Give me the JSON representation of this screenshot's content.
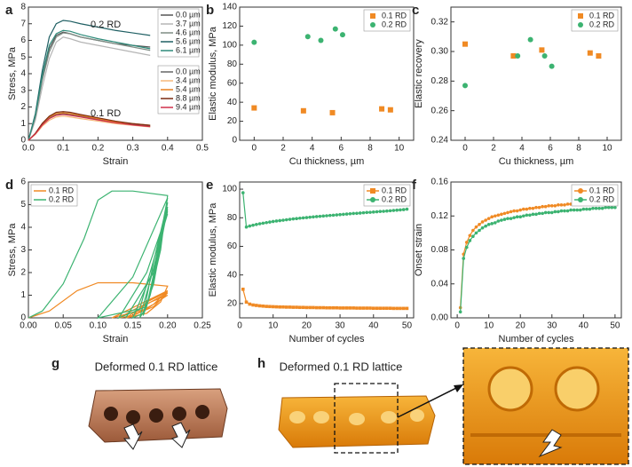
{
  "chart_data": [
    {
      "type": "line",
      "label": "a",
      "xlabel": "Strain",
      "ylabel": "Stress, MPa",
      "xlim": [
        0,
        0.5
      ],
      "xticks": [
        {
          "value": 0,
          "label": "0.0"
        },
        0.1,
        0.2,
        0.3,
        0.4,
        0.5
      ],
      "ylim": [
        0,
        8
      ],
      "yticks": [
        0,
        1,
        2,
        3,
        4,
        5,
        6,
        7,
        8
      ],
      "legend": "right",
      "annotations": [
        "0.2 RD",
        "0.1 RD"
      ],
      "series": [
        {
          "name": "0.0 µm",
          "color": "#555555",
          "x": [
            0,
            0.02,
            0.04,
            0.06,
            0.08,
            0.1,
            0.12,
            0.15,
            0.2,
            0.25,
            0.3,
            0.35
          ],
          "values": [
            0,
            1.5,
            3.8,
            5.5,
            6.3,
            6.5,
            6.4,
            6.2,
            6.0,
            5.8,
            5.7,
            5.6
          ]
        },
        {
          "name": "3.7 µm",
          "color": "#b5b5b5",
          "x": [
            0,
            0.02,
            0.04,
            0.06,
            0.08,
            0.1,
            0.12,
            0.15,
            0.2,
            0.25,
            0.3,
            0.35
          ],
          "values": [
            0,
            1.2,
            3.2,
            4.9,
            5.9,
            6.2,
            6.1,
            5.9,
            5.7,
            5.5,
            5.3,
            5.1
          ]
        },
        {
          "name": "4.6 µm",
          "color": "#7f8c84",
          "x": [
            0,
            0.02,
            0.04,
            0.06,
            0.08,
            0.1,
            0.12,
            0.15,
            0.2,
            0.25,
            0.3,
            0.35
          ],
          "values": [
            0,
            1.4,
            3.6,
            5.3,
            6.2,
            6.45,
            6.4,
            6.2,
            6.0,
            5.8,
            5.6,
            5.4
          ]
        },
        {
          "name": "5.6 µm",
          "color": "#1f5f63",
          "x": [
            0,
            0.02,
            0.04,
            0.06,
            0.08,
            0.1,
            0.12,
            0.15,
            0.2,
            0.25,
            0.3,
            0.35
          ],
          "values": [
            0,
            1.6,
            4.2,
            6.2,
            7.0,
            7.2,
            7.15,
            7.0,
            6.8,
            6.6,
            6.45,
            6.3
          ]
        },
        {
          "name": "6.1 µm",
          "color": "#2e8b7a",
          "x": [
            0,
            0.02,
            0.04,
            0.06,
            0.08,
            0.1,
            0.12,
            0.15,
            0.2,
            0.25,
            0.3,
            0.35
          ],
          "values": [
            0,
            1.5,
            3.9,
            5.7,
            6.4,
            6.6,
            6.55,
            6.35,
            6.1,
            5.9,
            5.7,
            5.5
          ]
        },
        {
          "name": "0.0 µm",
          "color": "#666666",
          "x": [
            0,
            0.02,
            0.04,
            0.06,
            0.08,
            0.1,
            0.12,
            0.15,
            0.2,
            0.25,
            0.3,
            0.35
          ],
          "values": [
            0,
            0.4,
            0.95,
            1.35,
            1.55,
            1.6,
            1.55,
            1.45,
            1.25,
            1.1,
            0.95,
            0.85
          ]
        },
        {
          "name": "3.4 µm",
          "color": "#f5b87a",
          "x": [
            0,
            0.02,
            0.04,
            0.06,
            0.08,
            0.1,
            0.12,
            0.15,
            0.2,
            0.25,
            0.3,
            0.35
          ],
          "values": [
            0,
            0.35,
            0.85,
            1.2,
            1.4,
            1.45,
            1.4,
            1.3,
            1.15,
            1.0,
            0.9,
            0.8
          ]
        },
        {
          "name": "5.4 µm",
          "color": "#e8801e",
          "x": [
            0,
            0.02,
            0.04,
            0.06,
            0.08,
            0.1,
            0.12,
            0.15,
            0.2,
            0.25,
            0.3,
            0.35
          ],
          "values": [
            0,
            0.4,
            1.0,
            1.4,
            1.6,
            1.65,
            1.6,
            1.5,
            1.3,
            1.1,
            1.0,
            0.9
          ]
        },
        {
          "name": "8.8 µm",
          "color": "#7a2a10",
          "x": [
            0,
            0.02,
            0.04,
            0.06,
            0.08,
            0.1,
            0.12,
            0.15,
            0.2,
            0.25,
            0.3,
            0.35
          ],
          "values": [
            0,
            0.42,
            1.02,
            1.45,
            1.68,
            1.72,
            1.68,
            1.55,
            1.35,
            1.15,
            1.0,
            0.9
          ]
        },
        {
          "name": "9.4 µm",
          "color": "#d0304a",
          "x": [
            0,
            0.02,
            0.04,
            0.06,
            0.08,
            0.1,
            0.12,
            0.15,
            0.2,
            0.25,
            0.3,
            0.35
          ],
          "values": [
            0,
            0.38,
            0.92,
            1.3,
            1.5,
            1.55,
            1.5,
            1.4,
            1.22,
            1.05,
            0.92,
            0.82
          ]
        }
      ]
    },
    {
      "type": "scatter",
      "label": "b",
      "xlabel": "Cu thickness, µm",
      "ylabel": "Elastic modulus, MPa",
      "xlim": [
        -1,
        11
      ],
      "xticks": [
        0,
        2,
        4,
        6,
        8,
        10
      ],
      "ylim": [
        0,
        140
      ],
      "yticks": [
        0,
        20,
        40,
        60,
        80,
        100,
        120,
        140
      ],
      "legend": "upper right",
      "series": [
        {
          "name": "0.1 RD",
          "color": "#f08a24",
          "marker": "square",
          "x": [
            0,
            3.4,
            5.4,
            8.8,
            9.4
          ],
          "values": [
            34,
            31,
            29,
            33,
            32
          ]
        },
        {
          "name": "0.2 RD",
          "color": "#3cb371",
          "marker": "circle",
          "x": [
            0,
            3.7,
            4.6,
            5.6,
            6.1
          ],
          "values": [
            103,
            109,
            105,
            117,
            111
          ]
        }
      ]
    },
    {
      "type": "scatter",
      "label": "c",
      "xlabel": "Cu thickness, µm",
      "ylabel": "Elastic recovery",
      "xlim": [
        -1,
        11
      ],
      "xticks": [
        0,
        2,
        4,
        6,
        8,
        10
      ],
      "ylim": [
        0.24,
        0.33
      ],
      "yticks": [
        0.24,
        0.26,
        0.28,
        {
          "value": 0.3,
          "label": "0.30"
        },
        0.32
      ],
      "legend": "upper right",
      "series": [
        {
          "name": "0.1 RD",
          "color": "#f08a24",
          "marker": "square",
          "x": [
            0,
            3.4,
            5.4,
            8.8,
            9.4
          ],
          "values": [
            0.305,
            0.297,
            0.301,
            0.299,
            0.297
          ]
        },
        {
          "name": "0.2 RD",
          "color": "#3cb371",
          "marker": "circle",
          "x": [
            0,
            3.7,
            4.6,
            5.6,
            6.1
          ],
          "values": [
            0.277,
            0.297,
            0.308,
            0.297,
            0.29
          ]
        }
      ]
    },
    {
      "type": "line",
      "label": "d",
      "xlabel": "Strain",
      "ylabel": "Stress, MPa",
      "xlim": [
        0,
        0.25
      ],
      "xticks": [
        {
          "value": 0,
          "label": "0.00"
        },
        0.05,
        {
          "value": 0.1,
          "label": "0.10"
        },
        0.15,
        {
          "value": 0.2,
          "label": "0.20"
        },
        0.25
      ],
      "ylim": [
        0,
        6
      ],
      "yticks": [
        0,
        1,
        2,
        3,
        4,
        5,
        6
      ],
      "legend": "upper left",
      "series": [
        {
          "name": "0.1 RD",
          "color": "#f08a24",
          "x": [
            0,
            0.03,
            0.07,
            0.1,
            0.15,
            0.2,
            0.19,
            0.17,
            0.14,
            0.17,
            0.2,
            0.18,
            0.15,
            0.13,
            0.16,
            0.2,
            0.17,
            0.12,
            0.16,
            0.2,
            0.18,
            0.15,
            0.17,
            0.2
          ],
          "values": [
            0,
            0.3,
            1.2,
            1.55,
            1.55,
            1.4,
            0.7,
            0.2,
            0,
            0.6,
            1.1,
            0.5,
            0.1,
            0,
            0.5,
            1.0,
            0.4,
            0,
            0.6,
            1.2,
            0.6,
            0.1,
            0.7,
            1.15
          ]
        },
        {
          "name": "0.2 RD",
          "color": "#3cb371",
          "x": [
            0,
            0.02,
            0.05,
            0.08,
            0.1,
            0.12,
            0.15,
            0.2,
            0.19,
            0.175,
            0.165,
            0.18,
            0.2,
            0.185,
            0.17,
            0.16,
            0.18,
            0.2,
            0.18,
            0.165,
            0.15,
            0.185,
            0.2,
            0.17,
            0.13,
            0.17,
            0.2,
            0.16,
            0.1,
            0.15,
            0.2,
            0.18,
            0.14,
            0.17,
            0.2
          ],
          "values": [
            0,
            0.3,
            1.5,
            3.5,
            5.2,
            5.6,
            5.6,
            5.4,
            3.0,
            1.0,
            0.1,
            2.5,
            5.1,
            2.5,
            0.5,
            0,
            2.2,
            4.9,
            1.5,
            0.2,
            0,
            2.5,
            4.8,
            0.5,
            0,
            2.0,
            4.7,
            0.4,
            0,
            1.8,
            5.3,
            2.0,
            0,
            1.5,
            4.6
          ]
        }
      ]
    },
    {
      "type": "line",
      "label": "e",
      "xlabel": "Number of cycles",
      "ylabel": "Elastic modulus, MPa",
      "xlim": [
        0,
        52
      ],
      "xticks": [
        0,
        10,
        20,
        30,
        40,
        50
      ],
      "ylim": [
        10,
        105
      ],
      "yticks": [
        20,
        40,
        60,
        80,
        100
      ],
      "legend": "upper right",
      "x": [
        1,
        2,
        3,
        4,
        5,
        6,
        7,
        8,
        9,
        10,
        11,
        12,
        13,
        14,
        15,
        16,
        17,
        18,
        19,
        20,
        21,
        22,
        23,
        24,
        25,
        26,
        27,
        28,
        29,
        30,
        31,
        32,
        33,
        34,
        35,
        36,
        37,
        38,
        39,
        40,
        41,
        42,
        43,
        44,
        45,
        46,
        47,
        48,
        49,
        50
      ],
      "series": [
        {
          "name": "0.1 RD",
          "color": "#f08a24",
          "marker": "square",
          "values": [
            30.0,
            21.0,
            19.6,
            19.0,
            18.7,
            18.4,
            18.2,
            18.0,
            17.9,
            17.8,
            17.7,
            17.6,
            17.6,
            17.5,
            17.5,
            17.4,
            17.4,
            17.3,
            17.3,
            17.2,
            17.2,
            17.2,
            17.1,
            17.1,
            17.1,
            17.0,
            17.0,
            17.0,
            17.0,
            16.9,
            16.9,
            16.9,
            16.9,
            16.9,
            16.8,
            16.8,
            16.8,
            16.8,
            16.8,
            16.7,
            16.7,
            16.7,
            16.7,
            16.7,
            16.7,
            16.6,
            16.6,
            16.6,
            16.6,
            16.6
          ]
        },
        {
          "name": "0.2 RD",
          "color": "#3cb371",
          "marker": "circle",
          "values": [
            97.5,
            73.5,
            74.2,
            74.8,
            75.3,
            75.8,
            76.2,
            76.6,
            77.0,
            77.4,
            77.7,
            78.0,
            78.3,
            78.6,
            78.9,
            79.2,
            79.4,
            79.7,
            79.9,
            80.1,
            80.4,
            80.6,
            80.8,
            81.0,
            81.2,
            81.4,
            81.6,
            81.8,
            82.0,
            82.2,
            82.4,
            82.6,
            82.8,
            83.0,
            83.1,
            83.3,
            83.5,
            83.7,
            83.8,
            84.0,
            84.2,
            84.4,
            84.5,
            84.7,
            84.9,
            85.1,
            85.3,
            85.5,
            85.7,
            86.0
          ]
        }
      ]
    },
    {
      "type": "line",
      "label": "f",
      "xlabel": "Number of cycles",
      "ylabel": "Onset strain",
      "xlim": [
        -2,
        52
      ],
      "xticks": [
        0,
        10,
        20,
        30,
        40,
        50
      ],
      "ylim": [
        0,
        0.16
      ],
      "yticks": [
        {
          "value": 0,
          "label": "0.00"
        },
        0.04,
        0.08,
        0.12,
        0.16
      ],
      "legend": "upper right",
      "x": [
        1,
        2,
        3,
        4,
        5,
        6,
        7,
        8,
        9,
        10,
        11,
        12,
        13,
        14,
        15,
        16,
        17,
        18,
        19,
        20,
        21,
        22,
        23,
        24,
        25,
        26,
        27,
        28,
        29,
        30,
        31,
        32,
        33,
        34,
        35,
        36,
        37,
        38,
        39,
        40,
        41,
        42,
        43,
        44,
        45,
        46,
        47,
        48,
        49,
        50
      ],
      "series": [
        {
          "name": "0.1 RD",
          "color": "#f08a24",
          "marker": "circle",
          "values": [
            0.012,
            0.075,
            0.089,
            0.097,
            0.103,
            0.107,
            0.11,
            0.113,
            0.115,
            0.117,
            0.119,
            0.12,
            0.121,
            0.122,
            0.123,
            0.124,
            0.125,
            0.126,
            0.126,
            0.127,
            0.128,
            0.128,
            0.129,
            0.129,
            0.13,
            0.13,
            0.131,
            0.131,
            0.132,
            0.132,
            0.132,
            0.133,
            0.133,
            0.133,
            0.134,
            0.134,
            0.134,
            0.135,
            0.135,
            0.135,
            0.135,
            0.136,
            0.136,
            0.136,
            0.136,
            0.137,
            0.137,
            0.137,
            0.137,
            0.138
          ]
        },
        {
          "name": "0.2 RD",
          "color": "#3cb371",
          "marker": "circle",
          "values": [
            0.007,
            0.07,
            0.083,
            0.091,
            0.096,
            0.1,
            0.103,
            0.106,
            0.108,
            0.11,
            0.111,
            0.112,
            0.114,
            0.115,
            0.116,
            0.117,
            0.117,
            0.118,
            0.119,
            0.119,
            0.12,
            0.121,
            0.121,
            0.122,
            0.122,
            0.123,
            0.123,
            0.124,
            0.124,
            0.124,
            0.125,
            0.125,
            0.126,
            0.126,
            0.126,
            0.127,
            0.127,
            0.127,
            0.127,
            0.128,
            0.128,
            0.128,
            0.129,
            0.129,
            0.129,
            0.129,
            0.13,
            0.13,
            0.13,
            0.13
          ]
        }
      ]
    }
  ],
  "images": [
    {
      "label": "g",
      "caption": "Deformed 0.1 RD lattice"
    },
    {
      "label": "h",
      "caption": "Deformed 0.1 RD lattice"
    }
  ]
}
